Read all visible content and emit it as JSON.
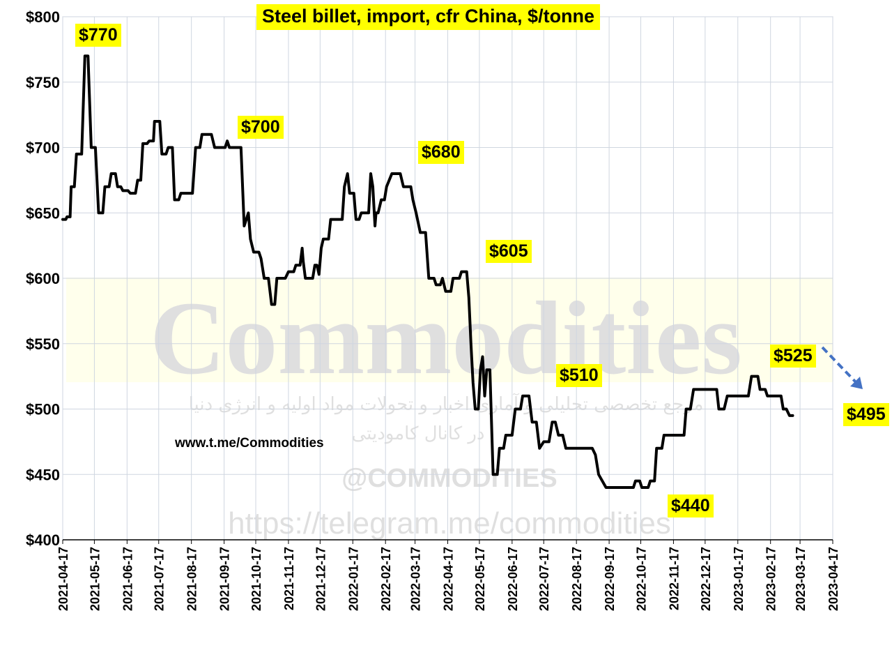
{
  "chart_data": {
    "type": "line",
    "title": "Steel billet, import, cfr China, $/tonne",
    "xlabel": "",
    "ylabel": "",
    "ylim": [
      400,
      800
    ],
    "y_ticks": [
      "$400",
      "$450",
      "$500",
      "$550",
      "$600",
      "$650",
      "$700",
      "$750",
      "$800"
    ],
    "x_ticks": [
      "2021-04-17",
      "2021-05-17",
      "2021-06-17",
      "2021-07-17",
      "2021-08-17",
      "2021-09-17",
      "2021-10-17",
      "2021-11-17",
      "2021-12-17",
      "2022-01-17",
      "2022-02-17",
      "2022-03-17",
      "2022-04-17",
      "2022-05-17",
      "2022-06-17",
      "2022-07-17",
      "2022-08-17",
      "2022-09-17",
      "2022-10-17",
      "2022-11-17",
      "2022-12-17",
      "2023-01-17",
      "2023-02-17",
      "2023-03-17",
      "2023-04-17"
    ],
    "grid": true,
    "series": [
      {
        "color": "#000000",
        "points": [
          [
            "2021-04-17",
            645
          ],
          [
            "2021-04-20",
            645
          ],
          [
            "2021-04-21",
            647
          ],
          [
            "2021-04-24",
            647
          ],
          [
            "2021-04-25",
            670
          ],
          [
            "2021-04-28",
            670
          ],
          [
            "2021-04-30",
            695
          ],
          [
            "2021-05-05",
            695
          ],
          [
            "2021-05-08",
            770
          ],
          [
            "2021-05-11",
            770
          ],
          [
            "2021-05-14",
            700
          ],
          [
            "2021-05-18",
            700
          ],
          [
            "2021-05-21",
            650
          ],
          [
            "2021-05-25",
            650
          ],
          [
            "2021-05-27",
            670
          ],
          [
            "2021-05-31",
            670
          ],
          [
            "2021-06-02",
            680
          ],
          [
            "2021-06-06",
            680
          ],
          [
            "2021-06-08",
            670
          ],
          [
            "2021-06-11",
            670
          ],
          [
            "2021-06-13",
            667
          ],
          [
            "2021-06-18",
            667
          ],
          [
            "2021-06-20",
            665
          ],
          [
            "2021-06-25",
            665
          ],
          [
            "2021-06-27",
            675
          ],
          [
            "2021-06-30",
            675
          ],
          [
            "2021-07-02",
            703
          ],
          [
            "2021-07-06",
            703
          ],
          [
            "2021-07-08",
            705
          ],
          [
            "2021-07-12",
            705
          ],
          [
            "2021-07-13",
            720
          ],
          [
            "2021-07-18",
            720
          ],
          [
            "2021-07-20",
            695
          ],
          [
            "2021-07-24",
            695
          ],
          [
            "2021-07-26",
            700
          ],
          [
            "2021-07-30",
            700
          ],
          [
            "2021-08-01",
            660
          ],
          [
            "2021-08-05",
            660
          ],
          [
            "2021-08-07",
            665
          ],
          [
            "2021-08-18",
            665
          ],
          [
            "2021-08-21",
            700
          ],
          [
            "2021-08-25",
            700
          ],
          [
            "2021-08-27",
            710
          ],
          [
            "2021-09-05",
            710
          ],
          [
            "2021-09-08",
            700
          ],
          [
            "2021-09-18",
            700
          ],
          [
            "2021-09-20",
            705
          ],
          [
            "2021-09-22",
            700
          ],
          [
            "2021-10-03",
            700
          ],
          [
            "2021-10-06",
            640
          ],
          [
            "2021-10-08",
            645
          ],
          [
            "2021-10-10",
            650
          ],
          [
            "2021-10-12",
            630
          ],
          [
            "2021-10-15",
            620
          ],
          [
            "2021-10-20",
            620
          ],
          [
            "2021-10-22",
            615
          ],
          [
            "2021-10-25",
            600
          ],
          [
            "2021-10-29",
            600
          ],
          [
            "2021-11-01",
            580
          ],
          [
            "2021-11-04",
            580
          ],
          [
            "2021-11-06",
            600
          ],
          [
            "2021-11-14",
            600
          ],
          [
            "2021-11-17",
            605
          ],
          [
            "2021-11-22",
            605
          ],
          [
            "2021-11-24",
            610
          ],
          [
            "2021-11-28",
            610
          ],
          [
            "2021-11-30",
            623
          ],
          [
            "2021-12-01",
            613
          ],
          [
            "2021-12-03",
            600
          ],
          [
            "2021-12-10",
            600
          ],
          [
            "2021-12-12",
            610
          ],
          [
            "2021-12-14",
            610
          ],
          [
            "2021-12-16",
            603
          ],
          [
            "2021-12-18",
            623
          ],
          [
            "2021-12-20",
            630
          ],
          [
            "2021-12-25",
            630
          ],
          [
            "2021-12-27",
            645
          ],
          [
            "2022-01-07",
            645
          ],
          [
            "2022-01-09",
            670
          ],
          [
            "2022-01-12",
            680
          ],
          [
            "2022-01-14",
            665
          ],
          [
            "2022-01-18",
            665
          ],
          [
            "2022-01-20",
            645
          ],
          [
            "2022-01-23",
            645
          ],
          [
            "2022-01-25",
            650
          ],
          [
            "2022-02-01",
            650
          ],
          [
            "2022-02-03",
            680
          ],
          [
            "2022-02-05",
            670
          ],
          [
            "2022-02-07",
            640
          ],
          [
            "2022-02-08",
            650
          ],
          [
            "2022-02-10",
            650
          ],
          [
            "2022-02-13",
            660
          ],
          [
            "2022-02-16",
            660
          ],
          [
            "2022-02-18",
            670
          ],
          [
            "2022-02-23",
            680
          ],
          [
            "2022-03-03",
            680
          ],
          [
            "2022-03-06",
            670
          ],
          [
            "2022-03-13",
            670
          ],
          [
            "2022-03-15",
            660
          ],
          [
            "2022-03-18",
            650
          ],
          [
            "2022-03-22",
            635
          ],
          [
            "2022-03-27",
            635
          ],
          [
            "2022-03-30",
            600
          ],
          [
            "2022-04-04",
            600
          ],
          [
            "2022-04-06",
            595
          ],
          [
            "2022-04-10",
            595
          ],
          [
            "2022-04-12",
            600
          ],
          [
            "2022-04-15",
            590
          ],
          [
            "2022-04-20",
            590
          ],
          [
            "2022-04-22",
            600
          ],
          [
            "2022-04-28",
            600
          ],
          [
            "2022-04-30",
            605
          ],
          [
            "2022-05-05",
            605
          ],
          [
            "2022-05-07",
            585
          ],
          [
            "2022-05-09",
            550
          ],
          [
            "2022-05-11",
            520
          ],
          [
            "2022-05-13",
            500
          ],
          [
            "2022-05-16",
            500
          ],
          [
            "2022-05-18",
            530
          ],
          [
            "2022-05-20",
            540
          ],
          [
            "2022-05-22",
            510
          ],
          [
            "2022-05-24",
            530
          ],
          [
            "2022-05-27",
            530
          ],
          [
            "2022-05-30",
            450
          ],
          [
            "2022-06-03",
            450
          ],
          [
            "2022-06-05",
            470
          ],
          [
            "2022-06-09",
            470
          ],
          [
            "2022-06-11",
            480
          ],
          [
            "2022-06-17",
            480
          ],
          [
            "2022-06-20",
            500
          ],
          [
            "2022-06-25",
            500
          ],
          [
            "2022-06-27",
            510
          ],
          [
            "2022-07-03",
            510
          ],
          [
            "2022-07-06",
            490
          ],
          [
            "2022-07-10",
            490
          ],
          [
            "2022-07-13",
            470
          ],
          [
            "2022-07-17",
            475
          ],
          [
            "2022-07-22",
            475
          ],
          [
            "2022-07-25",
            490
          ],
          [
            "2022-07-28",
            490
          ],
          [
            "2022-07-31",
            480
          ],
          [
            "2022-08-04",
            480
          ],
          [
            "2022-08-07",
            470
          ],
          [
            "2022-09-01",
            470
          ],
          [
            "2022-09-04",
            465
          ],
          [
            "2022-09-07",
            450
          ],
          [
            "2022-09-14",
            440
          ],
          [
            "2022-10-10",
            440
          ],
          [
            "2022-10-12",
            445
          ],
          [
            "2022-10-16",
            445
          ],
          [
            "2022-10-18",
            440
          ],
          [
            "2022-10-24",
            440
          ],
          [
            "2022-10-26",
            445
          ],
          [
            "2022-10-30",
            445
          ],
          [
            "2022-11-01",
            470
          ],
          [
            "2022-11-06",
            470
          ],
          [
            "2022-11-08",
            480
          ],
          [
            "2022-11-27",
            480
          ],
          [
            "2022-11-29",
            500
          ],
          [
            "2022-12-03",
            500
          ],
          [
            "2022-12-06",
            515
          ],
          [
            "2022-12-28",
            515
          ],
          [
            "2022-12-30",
            500
          ],
          [
            "2023-01-04",
            500
          ],
          [
            "2023-01-07",
            510
          ],
          [
            "2023-01-27",
            510
          ],
          [
            "2023-01-30",
            525
          ],
          [
            "2023-02-05",
            525
          ],
          [
            "2023-02-07",
            515
          ],
          [
            "2023-02-12",
            515
          ],
          [
            "2023-02-14",
            510
          ],
          [
            "2023-02-27",
            510
          ],
          [
            "2023-03-01",
            500
          ],
          [
            "2023-03-04",
            500
          ],
          [
            "2023-03-07",
            495
          ],
          [
            "2023-03-10",
            495
          ]
        ]
      }
    ],
    "annotations": [
      {
        "text": "$770",
        "x": "2021-05-08",
        "y": 770
      },
      {
        "text": "$700",
        "x": "2021-09-30",
        "y": 700
      },
      {
        "text": "$680",
        "x": "2022-03-05",
        "y": 680
      },
      {
        "text": "$605",
        "x": "2022-05-03",
        "y": 605
      },
      {
        "text": "$510",
        "x": "2022-06-30",
        "y": 510
      },
      {
        "text": "$440",
        "x": "2022-10-01",
        "y": 440
      },
      {
        "text": "$525",
        "x": "2023-01-31",
        "y": 525
      },
      {
        "text": "$495",
        "x": "2023-03-10",
        "y": 495
      }
    ],
    "trend_arrow_color": "#4472c4"
  },
  "source": "www.t.me/Commodities",
  "watermark": {
    "large": "Commodities",
    "persian_line1": "مرجع تخصصی تحلیلی و آماری اخبار و تحولات مواد اولیه و انرژی دنیا",
    "persian_line2": "در کانال کامودیتی",
    "handle": "@COMMODITIES",
    "url": "https://telegram.me/commodities"
  }
}
